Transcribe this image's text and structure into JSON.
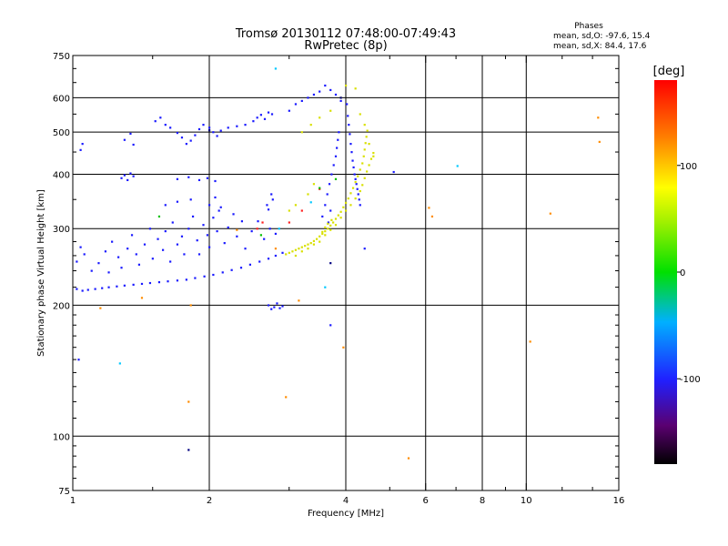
{
  "header": {
    "title_line1": "Tromsø 20130112 07:48:00-07:49:43",
    "title_line2": "RwPretec (8p)",
    "stats_title": "Phases",
    "stats_o": "mean, sd,O: -97.6, 15.4",
    "stats_x": "mean, sd,X: 84.4, 17.6"
  },
  "colorbar": {
    "label": "[deg]",
    "ticks": [
      "100",
      "0",
      "-100"
    ],
    "tick_values": [
      100,
      0,
      -100
    ],
    "range": [
      -180,
      180
    ]
  },
  "chart_data": {
    "type": "scatter",
    "xlabel": "Frequency [MHz]",
    "ylabel": "Stationary phase Virtual Height [km]",
    "xscale": "log",
    "yscale": "log",
    "xlim": [
      1,
      16
    ],
    "ylim": [
      75,
      750
    ],
    "x_tick_labels": [
      "1",
      "2",
      "4",
      "6",
      "8",
      "10",
      "16"
    ],
    "x_tick_values": [
      1,
      2,
      4,
      6,
      8,
      10,
      16
    ],
    "y_tick_labels": [
      "750",
      "600",
      "500",
      "400",
      "300",
      "200",
      "100",
      "75"
    ],
    "y_tick_values": [
      750,
      600,
      500,
      400,
      300,
      200,
      100,
      75
    ],
    "grid": true,
    "series": [
      {
        "color": "#1a1aff",
        "points": [
          [
            1.02,
            218
          ],
          [
            1.05,
            216
          ],
          [
            1.08,
            217
          ],
          [
            1.12,
            218
          ],
          [
            1.16,
            219
          ],
          [
            1.2,
            220
          ],
          [
            1.25,
            221
          ],
          [
            1.3,
            222
          ],
          [
            1.36,
            223
          ],
          [
            1.42,
            224
          ],
          [
            1.48,
            225
          ],
          [
            1.55,
            226
          ],
          [
            1.62,
            227
          ],
          [
            1.7,
            228
          ],
          [
            1.78,
            229
          ],
          [
            1.86,
            231
          ],
          [
            1.95,
            233
          ],
          [
            2.04,
            235
          ],
          [
            2.14,
            238
          ],
          [
            2.24,
            241
          ],
          [
            2.35,
            244
          ],
          [
            2.46,
            248
          ],
          [
            2.58,
            252
          ],
          [
            2.7,
            256
          ],
          [
            2.8,
            260
          ],
          [
            2.9,
            264
          ],
          [
            1.02,
            252
          ],
          [
            1.04,
            272
          ],
          [
            1.06,
            262
          ],
          [
            1.1,
            240
          ],
          [
            1.14,
            250
          ],
          [
            1.18,
            266
          ],
          [
            1.2,
            238
          ],
          [
            1.22,
            280
          ],
          [
            1.26,
            258
          ],
          [
            1.28,
            244
          ],
          [
            1.32,
            270
          ],
          [
            1.35,
            290
          ],
          [
            1.38,
            262
          ],
          [
            1.4,
            248
          ],
          [
            1.44,
            276
          ],
          [
            1.48,
            300
          ],
          [
            1.5,
            256
          ],
          [
            1.54,
            284
          ],
          [
            1.58,
            268
          ],
          [
            1.6,
            296
          ],
          [
            1.64,
            252
          ],
          [
            1.66,
            310
          ],
          [
            1.7,
            276
          ],
          [
            1.74,
            288
          ],
          [
            1.76,
            262
          ],
          [
            1.8,
            300
          ],
          [
            1.84,
            320
          ],
          [
            1.88,
            282
          ],
          [
            1.9,
            262
          ],
          [
            1.94,
            306
          ],
          [
            1.98,
            290
          ],
          [
            2.0,
            272
          ],
          [
            2.04,
            318
          ],
          [
            2.08,
            296
          ],
          [
            2.12,
            336
          ],
          [
            2.16,
            278
          ],
          [
            2.2,
            302
          ],
          [
            2.26,
            324
          ],
          [
            2.3,
            288
          ],
          [
            2.36,
            312
          ],
          [
            2.4,
            270
          ],
          [
            2.48,
            296
          ],
          [
            2.56,
            312
          ],
          [
            2.64,
            284
          ],
          [
            2.72,
            300
          ],
          [
            2.8,
            292
          ],
          [
            1.6,
            340
          ],
          [
            1.7,
            346
          ],
          [
            1.82,
            350
          ],
          [
            2.0,
            340
          ],
          [
            2.06,
            354
          ],
          [
            2.1,
            330
          ],
          [
            2.68,
            340
          ],
          [
            2.74,
            360
          ],
          [
            2.76,
            350
          ],
          [
            2.7,
            332
          ],
          [
            1.28,
            392
          ],
          [
            1.3,
            398
          ],
          [
            1.32,
            388
          ],
          [
            1.34,
            402
          ],
          [
            1.36,
            396
          ],
          [
            1.7,
            390
          ],
          [
            1.8,
            394
          ],
          [
            1.9,
            388
          ],
          [
            1.98,
            392
          ],
          [
            2.06,
            386
          ],
          [
            1.3,
            480
          ],
          [
            1.34,
            496
          ],
          [
            1.36,
            468
          ],
          [
            1.52,
            530
          ],
          [
            1.56,
            540
          ],
          [
            1.6,
            520
          ],
          [
            1.64,
            512
          ],
          [
            1.7,
            498
          ],
          [
            1.74,
            486
          ],
          [
            1.78,
            470
          ],
          [
            1.82,
            478
          ],
          [
            1.86,
            492
          ],
          [
            1.9,
            508
          ],
          [
            1.94,
            520
          ],
          [
            2.0,
            512
          ],
          [
            2.04,
            500
          ],
          [
            2.08,
            490
          ],
          [
            2.12,
            504
          ],
          [
            2.2,
            512
          ],
          [
            2.3,
            516
          ],
          [
            2.4,
            520
          ],
          [
            2.5,
            530
          ],
          [
            2.55,
            540
          ],
          [
            2.6,
            548
          ],
          [
            2.65,
            536
          ],
          [
            2.7,
            555
          ],
          [
            2.75,
            550
          ],
          [
            3.0,
            560
          ],
          [
            3.1,
            580
          ],
          [
            3.2,
            590
          ],
          [
            3.3,
            600
          ],
          [
            3.4,
            610
          ],
          [
            3.5,
            620
          ],
          [
            3.6,
            640
          ],
          [
            3.7,
            625
          ],
          [
            3.8,
            610
          ],
          [
            3.9,
            590
          ],
          [
            4.02,
            580
          ],
          [
            4.04,
            545
          ],
          [
            4.06,
            520
          ],
          [
            4.08,
            495
          ],
          [
            4.1,
            470
          ],
          [
            4.12,
            450
          ],
          [
            4.14,
            430
          ],
          [
            4.16,
            415
          ],
          [
            4.18,
            400
          ],
          [
            4.2,
            390
          ],
          [
            4.22,
            380
          ],
          [
            4.24,
            370
          ],
          [
            4.26,
            360
          ],
          [
            4.28,
            350
          ],
          [
            4.3,
            340
          ],
          [
            3.55,
            320
          ],
          [
            3.6,
            340
          ],
          [
            3.64,
            360
          ],
          [
            3.68,
            380
          ],
          [
            3.72,
            400
          ],
          [
            3.76,
            420
          ],
          [
            3.8,
            440
          ],
          [
            3.82,
            460
          ],
          [
            3.84,
            480
          ],
          [
            3.86,
            500
          ],
          [
            3.7,
            330
          ],
          [
            3.66,
            310
          ],
          [
            2.7,
            200
          ],
          [
            2.74,
            196
          ],
          [
            2.78,
            198
          ],
          [
            2.82,
            202
          ],
          [
            2.86,
            197
          ],
          [
            2.9,
            199
          ],
          [
            3.7,
            180
          ],
          [
            4.4,
            270
          ],
          [
            5.1,
            405
          ],
          [
            1.03,
            150
          ],
          [
            1.05,
            470
          ],
          [
            1.04,
            455
          ]
        ]
      },
      {
        "color": "#d8e000",
        "points": [
          [
            2.95,
            262
          ],
          [
            3.0,
            264
          ],
          [
            3.05,
            266
          ],
          [
            3.1,
            268
          ],
          [
            3.15,
            270
          ],
          [
            3.2,
            272
          ],
          [
            3.25,
            274
          ],
          [
            3.3,
            276
          ],
          [
            3.35,
            278
          ],
          [
            3.4,
            281
          ],
          [
            3.45,
            284
          ],
          [
            3.5,
            288
          ],
          [
            3.55,
            292
          ],
          [
            3.6,
            296
          ],
          [
            3.65,
            300
          ],
          [
            3.7,
            305
          ],
          [
            3.75,
            310
          ],
          [
            3.8,
            316
          ],
          [
            3.85,
            322
          ],
          [
            3.9,
            328
          ],
          [
            3.95,
            336
          ],
          [
            4.0,
            344
          ],
          [
            4.05,
            352
          ],
          [
            4.1,
            362
          ],
          [
            4.15,
            372
          ],
          [
            4.2,
            384
          ],
          [
            4.25,
            396
          ],
          [
            4.3,
            410
          ],
          [
            4.35,
            424
          ],
          [
            4.38,
            440
          ],
          [
            4.4,
            456
          ],
          [
            4.42,
            472
          ],
          [
            4.44,
            488
          ],
          [
            4.46,
            504
          ],
          [
            3.1,
            260
          ],
          [
            3.2,
            266
          ],
          [
            3.3,
            270
          ],
          [
            3.4,
            276
          ],
          [
            3.5,
            280
          ],
          [
            3.6,
            290
          ],
          [
            3.7,
            298
          ],
          [
            3.8,
            306
          ],
          [
            3.9,
            318
          ],
          [
            4.0,
            330
          ],
          [
            4.1,
            340
          ],
          [
            4.2,
            352
          ],
          [
            4.3,
            366
          ],
          [
            4.35,
            378
          ],
          [
            4.4,
            392
          ],
          [
            4.45,
            406
          ],
          [
            4.5,
            420
          ],
          [
            4.55,
            434
          ],
          [
            4.6,
            448
          ],
          [
            3.2,
            500
          ],
          [
            3.35,
            520
          ],
          [
            3.5,
            540
          ],
          [
            3.7,
            560
          ],
          [
            3.9,
            600
          ],
          [
            4.0,
            640
          ],
          [
            4.2,
            630
          ],
          [
            4.3,
            550
          ],
          [
            4.4,
            520
          ],
          [
            4.5,
            470
          ],
          [
            4.6,
            440
          ],
          [
            3.0,
            330
          ],
          [
            3.1,
            340
          ],
          [
            3.3,
            360
          ],
          [
            3.4,
            380
          ],
          [
            3.55,
            295
          ],
          [
            3.6,
            302
          ],
          [
            3.65,
            308
          ],
          [
            3.72,
            314
          ]
        ]
      },
      {
        "color": "#ff8c00",
        "points": [
          [
            1.15,
            197
          ],
          [
            1.42,
            208
          ],
          [
            1.8,
            120
          ],
          [
            1.82,
            200
          ],
          [
            2.3,
            298
          ],
          [
            2.8,
            270
          ],
          [
            2.95,
            123
          ],
          [
            3.15,
            205
          ],
          [
            3.95,
            160
          ],
          [
            5.5,
            89
          ],
          [
            6.1,
            335
          ],
          [
            6.2,
            320
          ],
          [
            10.2,
            165
          ],
          [
            11.3,
            325
          ],
          [
            14.4,
            540
          ],
          [
            14.5,
            475
          ]
        ]
      },
      {
        "color": "#00c8ff",
        "points": [
          [
            1.27,
            147
          ],
          [
            2.8,
            700
          ],
          [
            2.85,
            300
          ],
          [
            3.35,
            345
          ],
          [
            3.6,
            220
          ],
          [
            7.05,
            418
          ]
        ]
      },
      {
        "color": "#ff2020",
        "points": [
          [
            2.55,
            300
          ],
          [
            2.62,
            310
          ],
          [
            3.0,
            310
          ],
          [
            3.2,
            330
          ],
          [
            3.5,
            370
          ]
        ]
      },
      {
        "color": "#00c000",
        "points": [
          [
            1.55,
            320
          ],
          [
            2.6,
            290
          ],
          [
            3.5,
            372
          ],
          [
            3.8,
            390
          ]
        ]
      },
      {
        "color": "#000080",
        "points": [
          [
            1.8,
            93
          ],
          [
            2.0,
            505
          ],
          [
            3.7,
            250
          ],
          [
            3.9,
            600
          ]
        ]
      }
    ]
  }
}
